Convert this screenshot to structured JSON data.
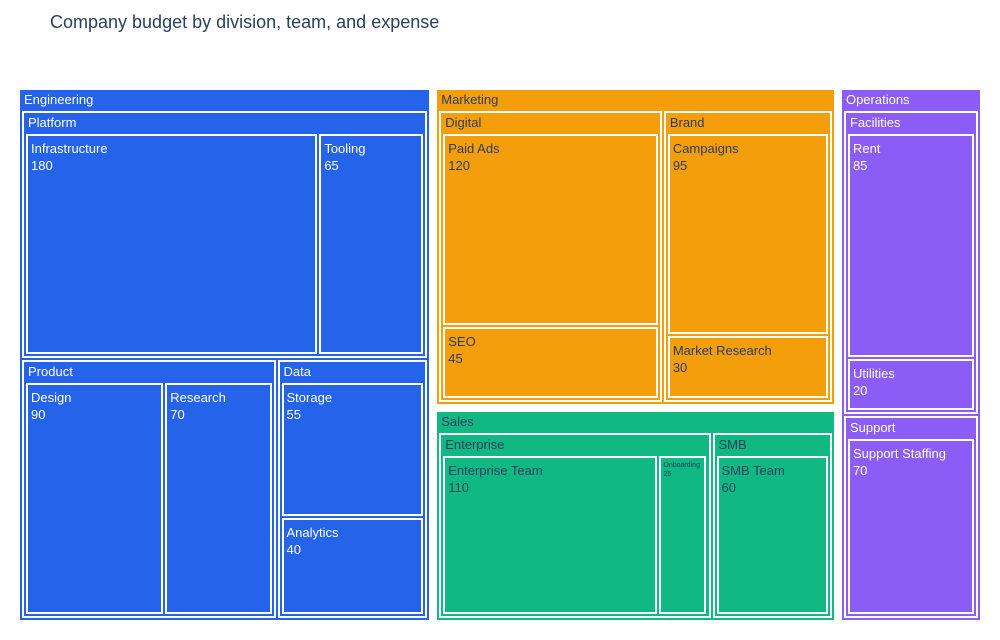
{
  "chart_data": {
    "type": "treemap",
    "title": "Company budget by division, team, and expense",
    "colors": {
      "Engineering": "#2563eb",
      "Marketing": "#f59e0b",
      "Sales": "#10b981",
      "Operations": "#8b5cf6"
    },
    "label_colors": {
      "Engineering": "#ffffff",
      "Marketing": "#2a3f5f",
      "Sales": "#2a3f5f",
      "Operations": "#ffffff"
    },
    "divisions": [
      {
        "name": "Engineering",
        "teams": [
          {
            "name": "Platform",
            "items": [
              {
                "name": "Infrastructure",
                "value": 180
              },
              {
                "name": "Tooling",
                "value": 65
              }
            ]
          },
          {
            "name": "Product",
            "items": [
              {
                "name": "Design",
                "value": 90
              },
              {
                "name": "Research",
                "value": 70
              }
            ]
          },
          {
            "name": "Data",
            "items": [
              {
                "name": "Storage",
                "value": 55
              },
              {
                "name": "Analytics",
                "value": 40
              }
            ]
          }
        ]
      },
      {
        "name": "Marketing",
        "teams": [
          {
            "name": "Digital",
            "items": [
              {
                "name": "Paid Ads",
                "value": 120
              },
              {
                "name": "SEO",
                "value": 45
              }
            ]
          },
          {
            "name": "Brand",
            "items": [
              {
                "name": "Campaigns",
                "value": 95
              },
              {
                "name": "Market Research",
                "value": 30
              }
            ]
          }
        ]
      },
      {
        "name": "Sales",
        "teams": [
          {
            "name": "Enterprise",
            "items": [
              {
                "name": "Enterprise Team",
                "value": 110
              },
              {
                "name": "Onboarding",
                "value": 25
              }
            ]
          },
          {
            "name": "SMB",
            "items": [
              {
                "name": "SMB Team",
                "value": 60
              }
            ]
          }
        ]
      },
      {
        "name": "Operations",
        "teams": [
          {
            "name": "Facilities",
            "items": [
              {
                "name": "Rent",
                "value": 85
              },
              {
                "name": "Utilities",
                "value": 20
              }
            ]
          },
          {
            "name": "Support",
            "items": [
              {
                "name": "Support Staffing",
                "value": 70
              }
            ]
          }
        ]
      }
    ]
  }
}
